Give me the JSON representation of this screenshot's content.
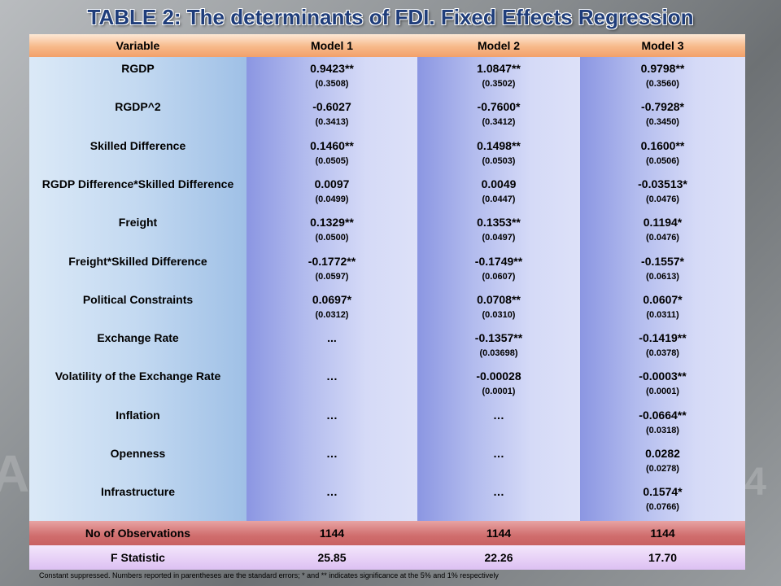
{
  "title": "TABLE 2: The determinants of FDI.  Fixed Effects Regression",
  "headers": [
    "Variable",
    "Model 1",
    "Model 2",
    "Model 3"
  ],
  "rows": [
    {
      "label": "RGDP",
      "m1": "0.9423**",
      "m1_se": "(0.3508)",
      "m2": "1.0847**",
      "m2_se": "(0.3502)",
      "m3": "0.9798**",
      "m3_se": "(0.3560)"
    },
    {
      "label": "RGDP^2",
      "m1": "-0.6027",
      "m1_se": "(0.3413)",
      "m2": "-0.7600*",
      "m2_se": "(0.3412)",
      "m3": "-0.7928*",
      "m3_se": "(0.3450)"
    },
    {
      "label": "Skilled Difference",
      "m1": "0.1460**",
      "m1_se": "(0.0505)",
      "m2": "0.1498**",
      "m2_se": "(0.0503)",
      "m3": "0.1600**",
      "m3_se": "(0.0506)"
    },
    {
      "label": "RGDP Difference*Skilled Difference",
      "m1": "0.0097",
      "m1_se": "(0.0499)",
      "m2": "0.0049",
      "m2_se": "(0.0447)",
      "m3": "-0.03513*",
      "m3_se": "(0.0476)"
    },
    {
      "label": "Freight",
      "m1": "0.1329**",
      "m1_se": "(0.0500)",
      "m2": "0.1353**",
      "m2_se": "(0.0497)",
      "m3": "0.1194*",
      "m3_se": "(0.0476)"
    },
    {
      "label": "Freight*Skilled Difference",
      "m1": "-0.1772**",
      "m1_se": "(0.0597)",
      "m2": "-0.1749**",
      "m2_se": "(0.0607)",
      "m3": "-0.1557*",
      "m3_se": "(0.0613)"
    },
    {
      "label": "Political Constraints",
      "m1": "0.0697*",
      "m1_se": "(0.0312)",
      "m2": "0.0708**",
      "m2_se": "(0.0310)",
      "m3": "0.0607*",
      "m3_se": "(0.0311)"
    },
    {
      "label": "Exchange Rate",
      "m1": "...",
      "m1_se": "",
      "m2": "-0.1357**",
      "m2_se": "(0.03698)",
      "m3": "-0.1419**",
      "m3_se": "(0.0378)"
    },
    {
      "label": "Volatility of the Exchange Rate",
      "m1": "…",
      "m1_se": "",
      "m2": "-0.00028",
      "m2_se": "(0.0001)",
      "m3": "-0.0003**",
      "m3_se": "(0.0001)"
    },
    {
      "label": "Inflation",
      "m1": "…",
      "m1_se": "",
      "m2": "…",
      "m2_se": "",
      "m3": "-0.0664**",
      "m3_se": "(0.0318)"
    },
    {
      "label": "Openness",
      "m1": "…",
      "m1_se": "",
      "m2": "…",
      "m2_se": "",
      "m3": "0.0282",
      "m3_se": "(0.0278)"
    },
    {
      "label": "Infrastructure",
      "m1": "…",
      "m1_se": "",
      "m2": "…",
      "m2_se": "",
      "m3": "0.1574*",
      "m3_se": "(0.0766)"
    }
  ],
  "observations": {
    "label": "No of Observations",
    "m1": "1144",
    "m2": "1144",
    "m3": "1144"
  },
  "fstat": {
    "label": "F Statistic",
    "m1": "25.85",
    "m2": "22.26",
    "m3": "17.70"
  },
  "note": "Constant suppressed. Numbers reported in parentheses are the standard errors; * and ** indicates significance at the 5% and 1% respectively"
}
